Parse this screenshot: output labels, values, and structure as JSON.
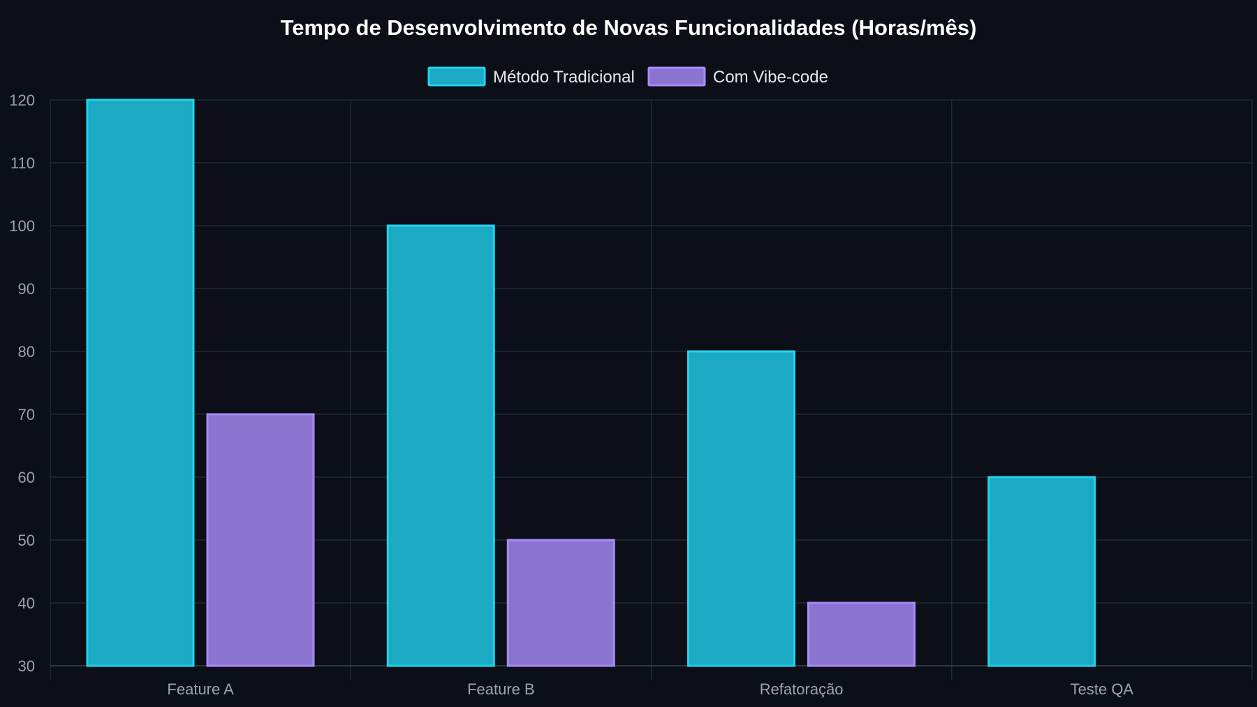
{
  "chart_data": {
    "type": "bar",
    "title": "Tempo de Desenvolvimento de Novas Funcionalidades (Horas/mês)",
    "categories": [
      "Feature A",
      "Feature B",
      "Refatoração",
      "Teste QA"
    ],
    "series": [
      {
        "name": "Método Tradicional",
        "values": [
          120,
          100,
          80,
          60
        ],
        "color": "#1ba9c3",
        "stroke": "#22d3ee"
      },
      {
        "name": "Com Vibe-code",
        "values": [
          70,
          50,
          40,
          null
        ],
        "color": "#8b74cf",
        "stroke": "#a78bfa"
      }
    ],
    "ylim": [
      30,
      120
    ],
    "yticks": [
      30,
      40,
      50,
      60,
      70,
      80,
      90,
      100,
      110,
      120
    ],
    "grid": true,
    "legend_position": "top-center",
    "xlabel": "",
    "ylabel": ""
  }
}
